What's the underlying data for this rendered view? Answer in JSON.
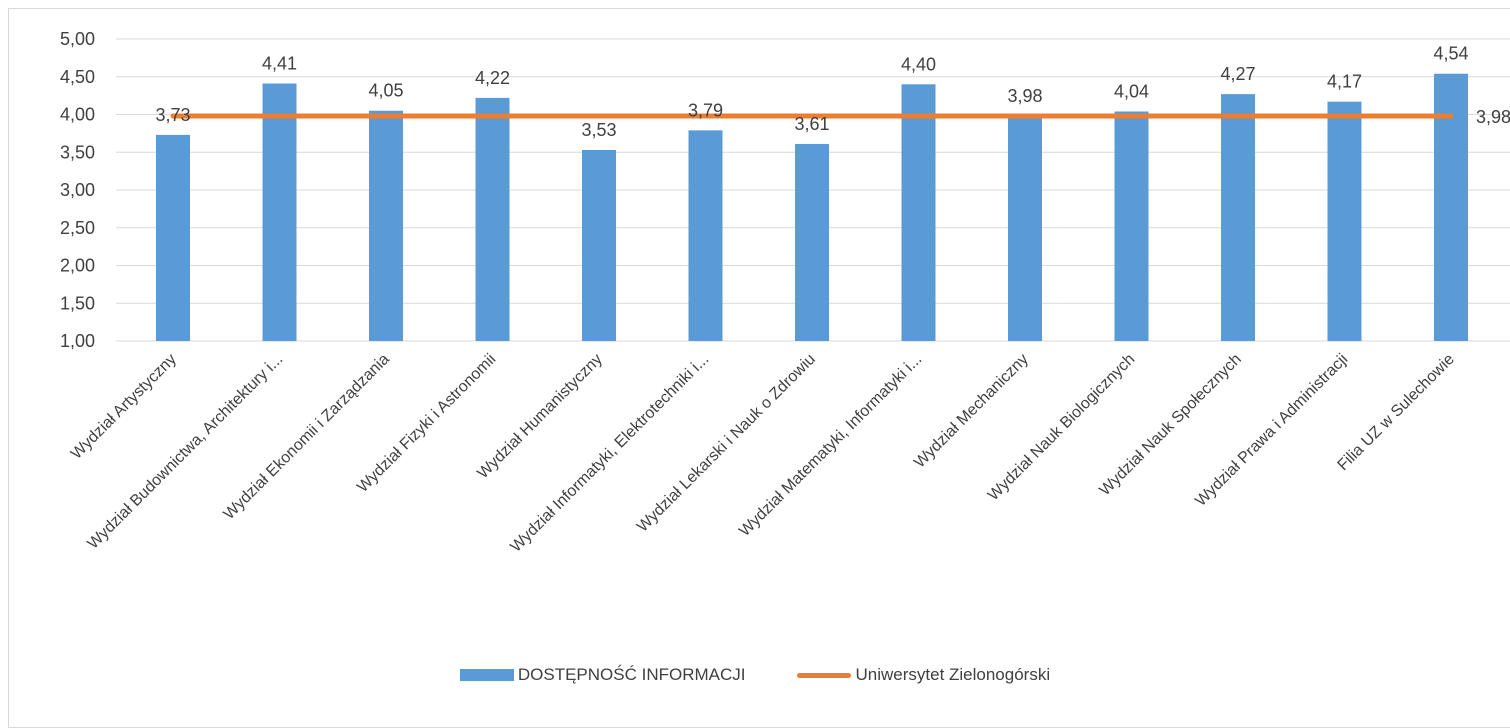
{
  "chart_data": {
    "type": "bar",
    "title": "",
    "xlabel": "",
    "ylabel": "",
    "ylim": [
      1.0,
      5.0
    ],
    "yticks": [
      "1,00",
      "1,50",
      "2,00",
      "2,50",
      "3,00",
      "3,50",
      "4,00",
      "4,50",
      "5,00"
    ],
    "grid": true,
    "legend_position": "bottom",
    "categories": [
      "Wydział Artystyczny",
      "Wydział Budownictwa, Architektury i...",
      "Wydział Ekonomii i Zarządzania",
      "Wydział Fizyki i Astronomii",
      "Wydział Humanistyczny",
      "Wydział Informatyki, Elektrotechniki i...",
      "Wydział Lekarski i Nauk o Zdrowiu",
      "Wydział Matematyki, Informatyki i...",
      "Wydział Mechaniczny",
      "Wydział Nauk Biologicznych",
      "Wydział Nauk Społecznych",
      "Wydział Prawa i Administracji",
      "Filia UZ w Sulechowie"
    ],
    "series": [
      {
        "name": "DOSTĘPNOŚĆ INFORMACJI",
        "type": "bar",
        "color": "#5b9bd5",
        "values": [
          3.73,
          4.41,
          4.05,
          4.22,
          3.53,
          3.79,
          3.61,
          4.4,
          3.98,
          4.04,
          4.27,
          4.17,
          4.54
        ],
        "labels": [
          "3,73",
          "4,41",
          "4,05",
          "4,22",
          "3,53",
          "3,79",
          "3,61",
          "4,40",
          "3,98",
          "4,04",
          "4,27",
          "4,17",
          "4,54"
        ]
      },
      {
        "name": "Uniwersytet Zielonogórski",
        "type": "line",
        "color": "#ed7d31",
        "value": 3.98,
        "label": "3,98"
      }
    ]
  }
}
